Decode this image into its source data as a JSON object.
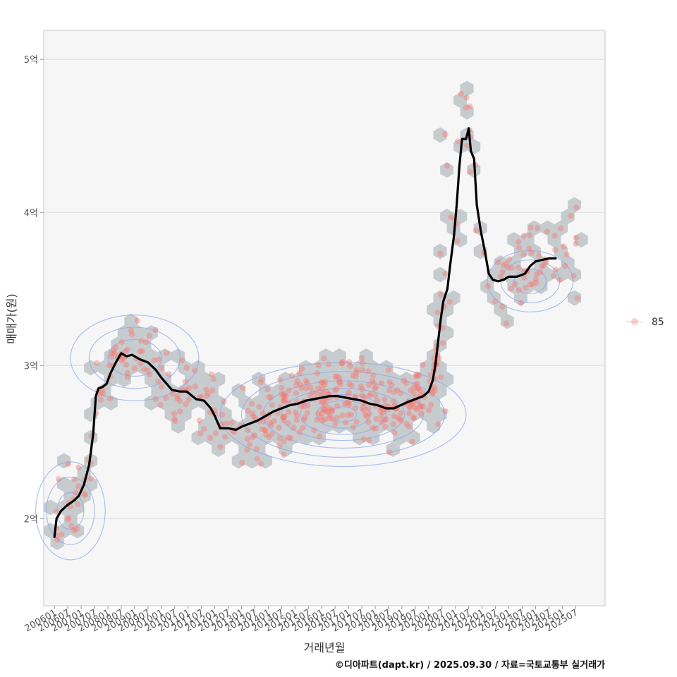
{
  "chart_data": {
    "type": "scatter",
    "xlabel": "거래년월",
    "ylabel": "매매가(원)",
    "caption": "©디아파트(dapt.kr) / 2025.09.30 / 자료=국토교통부 실거래가",
    "x_ticks": [
      "200601",
      "200607",
      "200701",
      "200707",
      "200801",
      "200807",
      "200901",
      "200907",
      "201001",
      "201007",
      "201101",
      "201107",
      "201201",
      "201207",
      "201301",
      "201307",
      "201401",
      "201407",
      "201501",
      "201507",
      "201601",
      "201607",
      "201701",
      "201707",
      "201801",
      "201807",
      "201901",
      "201907",
      "202001",
      "202007",
      "202101",
      "202107",
      "202201",
      "202207",
      "202301",
      "202307",
      "202401",
      "202407",
      "202501",
      "202507"
    ],
    "y_ticks": [
      {
        "value": 2,
        "label": "2억"
      },
      {
        "value": 3,
        "label": "3억"
      },
      {
        "value": 4,
        "label": "4억"
      },
      {
        "value": 5,
        "label": "5억"
      }
    ],
    "ylim_eok": [
      1.43,
      5.19
    ],
    "xlim_year": [
      2005.6,
      2026.6
    ],
    "legend": {
      "position": "right",
      "entries": [
        {
          "label": "85",
          "color": "#F8766D"
        }
      ]
    },
    "colors": {
      "points": "#F8766D",
      "trend": "#000000",
      "hex": "#BDC3C7",
      "contour": "#8FA8EE",
      "panel": "#F6F6F6"
    },
    "trend_line": [
      [
        2006.0,
        1.88
      ],
      [
        2006.08,
        2.0
      ],
      [
        2006.25,
        2.05
      ],
      [
        2006.5,
        2.09
      ],
      [
        2006.75,
        2.12
      ],
      [
        2006.92,
        2.15
      ],
      [
        2007.1,
        2.22
      ],
      [
        2007.3,
        2.35
      ],
      [
        2007.45,
        2.55
      ],
      [
        2007.55,
        2.8
      ],
      [
        2007.65,
        2.85
      ],
      [
        2007.8,
        2.86
      ],
      [
        2007.95,
        2.88
      ],
      [
        2008.1,
        2.95
      ],
      [
        2008.3,
        3.02
      ],
      [
        2008.5,
        3.08
      ],
      [
        2008.7,
        3.06
      ],
      [
        2008.9,
        3.07
      ],
      [
        2009.2,
        3.04
      ],
      [
        2009.5,
        3.02
      ],
      [
        2009.8,
        2.97
      ],
      [
        2010.0,
        2.92
      ],
      [
        2010.2,
        2.88
      ],
      [
        2010.4,
        2.84
      ],
      [
        2010.7,
        2.83
      ],
      [
        2010.95,
        2.83
      ],
      [
        2011.3,
        2.78
      ],
      [
        2011.6,
        2.77
      ],
      [
        2011.85,
        2.72
      ],
      [
        2012.0,
        2.67
      ],
      [
        2012.1,
        2.63
      ],
      [
        2012.2,
        2.59
      ],
      [
        2012.5,
        2.59
      ],
      [
        2012.8,
        2.58
      ],
      [
        2013.0,
        2.6
      ],
      [
        2013.3,
        2.62
      ],
      [
        2013.6,
        2.64
      ],
      [
        2013.9,
        2.67
      ],
      [
        2014.2,
        2.7
      ],
      [
        2014.5,
        2.72
      ],
      [
        2014.8,
        2.74
      ],
      [
        2015.1,
        2.75
      ],
      [
        2015.4,
        2.77
      ],
      [
        2015.7,
        2.78
      ],
      [
        2016.0,
        2.79
      ],
      [
        2016.3,
        2.8
      ],
      [
        2016.6,
        2.8
      ],
      [
        2016.9,
        2.79
      ],
      [
        2017.2,
        2.78
      ],
      [
        2017.5,
        2.77
      ],
      [
        2017.8,
        2.75
      ],
      [
        2018.1,
        2.74
      ],
      [
        2018.4,
        2.72
      ],
      [
        2018.7,
        2.72
      ],
      [
        2018.95,
        2.74
      ],
      [
        2019.2,
        2.76
      ],
      [
        2019.5,
        2.78
      ],
      [
        2019.8,
        2.8
      ],
      [
        2020.0,
        2.83
      ],
      [
        2020.15,
        2.9
      ],
      [
        2020.25,
        3.0
      ],
      [
        2020.35,
        3.15
      ],
      [
        2020.45,
        3.3
      ],
      [
        2020.55,
        3.42
      ],
      [
        2020.7,
        3.5
      ],
      [
        2020.8,
        3.65
      ],
      [
        2020.95,
        3.85
      ],
      [
        2021.05,
        4.05
      ],
      [
        2021.15,
        4.3
      ],
      [
        2021.25,
        4.48
      ],
      [
        2021.4,
        4.48
      ],
      [
        2021.5,
        4.55
      ],
      [
        2021.58,
        4.4
      ],
      [
        2021.7,
        4.35
      ],
      [
        2021.8,
        4.05
      ],
      [
        2021.95,
        3.88
      ],
      [
        2022.1,
        3.75
      ],
      [
        2022.25,
        3.6
      ],
      [
        2022.4,
        3.56
      ],
      [
        2022.6,
        3.55
      ],
      [
        2022.8,
        3.56
      ],
      [
        2023.0,
        3.58
      ],
      [
        2023.3,
        3.58
      ],
      [
        2023.6,
        3.6
      ],
      [
        2023.8,
        3.65
      ],
      [
        2024.0,
        3.68
      ],
      [
        2024.25,
        3.69
      ],
      [
        2024.5,
        3.7
      ],
      [
        2024.75,
        3.7
      ]
    ]
  }
}
